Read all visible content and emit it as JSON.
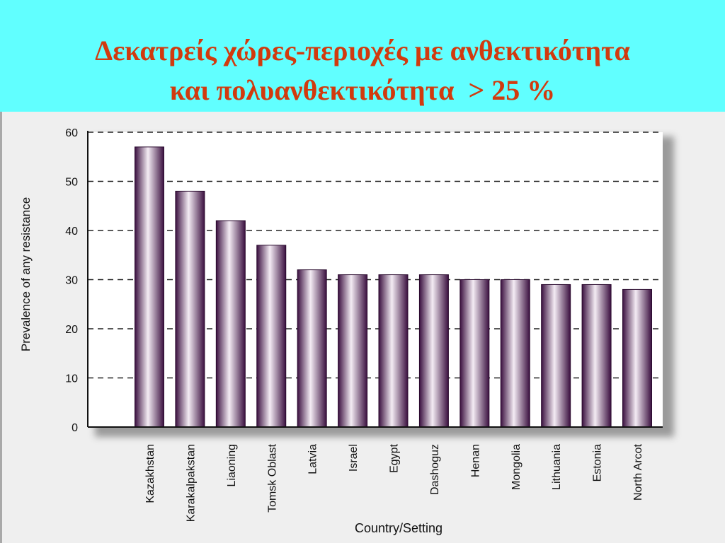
{
  "slide": {
    "title_line_1": "Δεκατρείς χώρες-περιοχές με ανθεκτικότητα",
    "title_line_2": "και πολυανθεκτικότητα  > 25 %"
  },
  "colors": {
    "title_band": "#61ffff",
    "title_text": "#d13a0e",
    "bar_dark": "#3a0f3f",
    "bar_light": "#f4ecf4"
  },
  "chart_data": {
    "type": "bar",
    "title": "",
    "xlabel": "Country/Setting",
    "ylabel": "Prevalence of any resistance",
    "categories": [
      "Kazakhstan",
      "Karakalpakstan",
      "Liaoning",
      "Tomsk Oblast",
      "Latvia",
      "Israel",
      "Egypt",
      "Dashoguz",
      "Henan",
      "Mongolia",
      "Lithuania",
      "Estonia",
      "North Arcot"
    ],
    "values": [
      57,
      48,
      42,
      37,
      32,
      31,
      31,
      31,
      30,
      30,
      29,
      29,
      28
    ],
    "ylim": [
      0,
      60
    ],
    "yticks": [
      "0",
      "10",
      "20",
      "30",
      "40",
      "50",
      "60"
    ],
    "grid": "horizontal dashed",
    "legend": "none"
  }
}
